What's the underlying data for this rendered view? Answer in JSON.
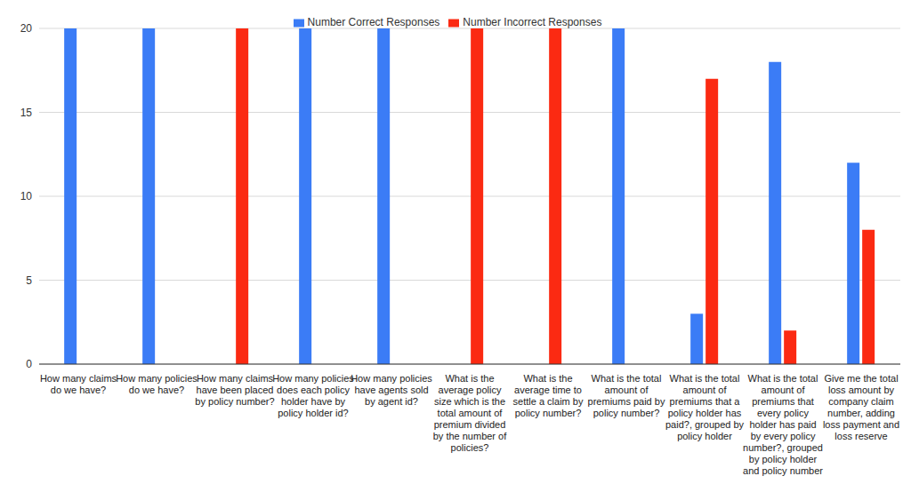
{
  "chart_data": {
    "type": "bar",
    "categories": [
      "How many claims do we have?",
      "How many policies do we have?",
      "How many claims have been placed by policy number?",
      "How many policies does each policy holder have by policy holder id?",
      "How many policies have agents sold by agent id?",
      "What is the average policy size which is the total amount of premium divided by the number of policies?",
      "What is the average time to settle a claim by policy number?",
      "What is the total amount of premiums paid by policy number?",
      "What is the total amount of premiums that a policy holder has paid?, grouped by policy holder",
      "What is the total amount of premiums that every policy holder has paid by every policy number?, grouped by policy holder and policy number",
      "Give me the total loss amount by company claim number, adding loss payment and loss reserve"
    ],
    "series": [
      {
        "name": "Number Correct Responses",
        "color": "#3b7cf6",
        "values": [
          20,
          20,
          0,
          20,
          20,
          0,
          0,
          20,
          3,
          18,
          12
        ]
      },
      {
        "name": "Number Incorrect Responses",
        "color": "#fb2a12",
        "values": [
          0,
          0,
          20,
          0,
          0,
          20,
          20,
          0,
          17,
          2,
          8
        ]
      }
    ],
    "ylim": [
      0,
      20
    ],
    "yticks": [
      0,
      5,
      10,
      15,
      20
    ],
    "grid": true,
    "legend": "top"
  }
}
